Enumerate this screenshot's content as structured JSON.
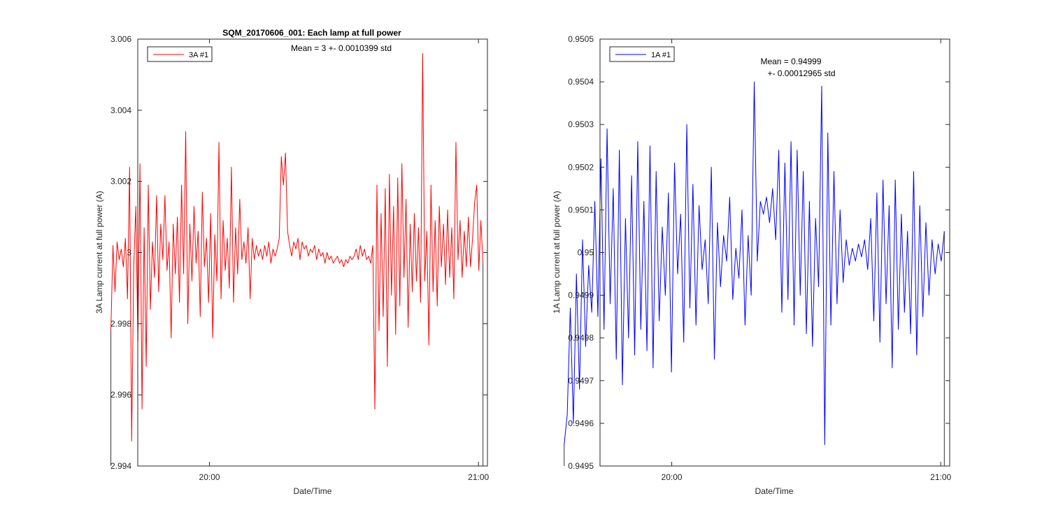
{
  "chart_data": [
    {
      "type": "line",
      "title": "SQM_20170606_001: Each lamp at full power",
      "xlabel": "Date/Time",
      "ylabel": "3A Lamp current at full power (A)",
      "xlim_minutes": [
        -16,
        62
      ],
      "xticks": [
        {
          "label": "20:00",
          "value": 0
        },
        {
          "label": "21:00",
          "value": 60
        }
      ],
      "ylim": [
        2.994,
        3.006
      ],
      "yticks": [
        2.994,
        2.996,
        2.998,
        3.0,
        3.002,
        3.004,
        3.006
      ],
      "ytick_labels": [
        "2.994",
        "2.996",
        "2.998",
        "3",
        "3.002",
        "3.004",
        "3.006"
      ],
      "legend": {
        "label": "3A #1",
        "location": "top-left"
      },
      "annotation": [
        "Mean = 3 +- 0.0010399 std"
      ],
      "series": [
        {
          "name": "3A #1",
          "color": "#ff0000",
          "x_start_minutes": -22.0,
          "x_end_minutes": 61.0,
          "values": [
            2.9978,
            3.0002,
            2.9989,
            3.0003,
            2.9998,
            3.0001,
            2.9996,
            3.0004,
            2.9987,
            3.0024,
            2.9947,
            2.9996,
            3.0013,
            2.9975,
            3.0025,
            2.9956,
            3.0007,
            2.9968,
            3.0019,
            2.9984,
            3.0003,
            2.9993,
            3.0016,
            2.9989,
            3.0008,
            2.9998,
            3.0016,
            2.9995,
            3.0003,
            2.9976,
            3.0008,
            2.9994,
            3.001,
            2.9986,
            3.0019,
            2.9994,
            3.0034,
            2.998,
            3.0008,
            2.9992,
            3.0013,
            2.9997,
            3.0006,
            2.9982,
            3.0017,
            2.9996,
            3.0004,
            2.9986,
            3.0011,
            2.9976,
            3.0005,
            2.9992,
            3.0031,
            2.9987,
            3.0009,
            2.9995,
            3.0004,
            2.999,
            3.0024,
            2.9986,
            3.0007,
            2.9994,
            3.0015,
            2.9998,
            3.0003,
            2.9997,
            3.0007,
            2.9987,
            3.0004,
            2.9998,
            3.0002,
            2.9999,
            3.0001,
            2.9998,
            3.0002,
            2.9999,
            3.0003,
            2.9997,
            3.0001,
            2.9999,
            3.0001,
            3.0004,
            3.0027,
            3.0019,
            3.0028,
            3.0006,
            3.0002,
            2.9999,
            3.0003,
            3.0001,
            3.0004,
            2.9998,
            3.0003,
            3.0001,
            3.0002,
            2.9999,
            3.0001,
            3.0,
            3.0002,
            2.9998,
            3.0001,
            2.9999,
            3.0,
            2.9997,
            3.0,
            2.9998,
            2.9999,
            2.9997,
            2.9998,
            2.9999,
            2.9997,
            2.9998,
            2.9996,
            2.9998,
            2.9997,
            2.9999,
            2.9998,
            2.9999,
            3.0001,
            2.9998,
            3.0002,
            2.9999,
            3.0001,
            2.9998,
            2.9999,
            2.9997,
            3.0002,
            2.9956,
            3.0019,
            2.9978,
            3.0011,
            2.9982,
            3.0018,
            2.9968,
            3.0022,
            2.9988,
            3.0013,
            2.9977,
            3.0021,
            2.9985,
            3.0025,
            2.9993,
            3.0015,
            2.9979,
            3.0008,
            2.9989,
            3.0011,
            2.9992,
            3.0007,
            2.9986,
            3.0056,
            2.9992,
            3.0006,
            2.9974,
            3.0019,
            2.9989,
            3.0009,
            2.9985,
            3.0013,
            2.9996,
            3.0008,
            2.9991,
            3.0012,
            2.9993,
            3.0007,
            2.9987,
            3.0031,
            2.9998,
            3.0009,
            2.9993,
            3.0006,
            2.9996,
            3.001,
            2.9996,
            3.0004,
            3.0014,
            3.0019,
            2.9995,
            3.0009,
            2.9997
          ]
        }
      ]
    },
    {
      "type": "line",
      "title": "",
      "xlabel": "Date/Time",
      "ylabel": "1A Lamp current at full power (A)",
      "xlim_minutes": [
        -16,
        62
      ],
      "xticks": [
        {
          "label": "20:00",
          "value": 0
        },
        {
          "label": "21:00",
          "value": 60
        }
      ],
      "ylim": [
        0.9495,
        0.9505
      ],
      "yticks": [
        0.9495,
        0.9496,
        0.9497,
        0.9498,
        0.9499,
        0.95,
        0.9501,
        0.9502,
        0.9503,
        0.9504,
        0.9505
      ],
      "ytick_labels": [
        "0.9495",
        "0.9496",
        "0.9497",
        "0.9498",
        "0.9499",
        "0.95",
        "0.9501",
        "0.9502",
        "0.9503",
        "0.9504",
        "0.9505"
      ],
      "legend": {
        "label": "1A #1",
        "location": "top-left"
      },
      "annotation": [
        "Mean = 0.94999",
        "+- 0.00012965 std"
      ],
      "series": [
        {
          "name": "1A #1",
          "color": "#0000ff",
          "x_start_minutes": -24.0,
          "x_end_minutes": 60.8,
          "values": [
            0.94955,
            0.94962,
            0.94987,
            0.9496,
            0.94995,
            0.94968,
            0.95003,
            0.94978,
            0.94997,
            0.94986,
            0.95012,
            0.94985,
            0.95022,
            0.94982,
            0.95029,
            0.94988,
            0.95015,
            0.94975,
            0.95024,
            0.94969,
            0.95008,
            0.9498,
            0.95018,
            0.94976,
            0.95026,
            0.94982,
            0.95012,
            0.94977,
            0.95025,
            0.94973,
            0.95019,
            0.94984,
            0.95006,
            0.9499,
            0.95014,
            0.94972,
            0.95021,
            0.94995,
            0.95009,
            0.94979,
            0.9503,
            0.94987,
            0.95016,
            0.94983,
            0.95011,
            0.94996,
            0.95003,
            0.94988,
            0.9502,
            0.94975,
            0.95007,
            0.94992,
            0.95004,
            0.94998,
            0.95013,
            0.94989,
            0.95001,
            0.94994,
            0.9501,
            0.94983,
            0.95004,
            0.9499,
            0.9504,
            0.94998,
            0.95012,
            0.95009,
            0.95013,
            0.95007,
            0.95015,
            0.95003,
            0.95024,
            0.94986,
            0.95021,
            0.94989,
            0.95026,
            0.94983,
            0.95024,
            0.9499,
            0.95019,
            0.94981,
            0.95012,
            0.94978,
            0.95008,
            0.94992,
            0.95039,
            0.94955,
            0.95028,
            0.94983,
            0.95019,
            0.94988,
            0.9501,
            0.94993,
            0.95003,
            0.94997,
            0.95001,
            0.94998,
            0.95002,
            0.94999,
            0.95003,
            0.94996,
            0.95008,
            0.94984,
            0.95014,
            0.94979,
            0.95017,
            0.94988,
            0.95011,
            0.94973,
            0.95017,
            0.94982,
            0.95009,
            0.94986,
            0.95005,
            0.94981,
            0.95019,
            0.94976,
            0.95011,
            0.94985,
            0.95007,
            0.9499,
            0.95003,
            0.94995,
            0.95002,
            0.94998,
            0.95005
          ]
        }
      ]
    }
  ]
}
